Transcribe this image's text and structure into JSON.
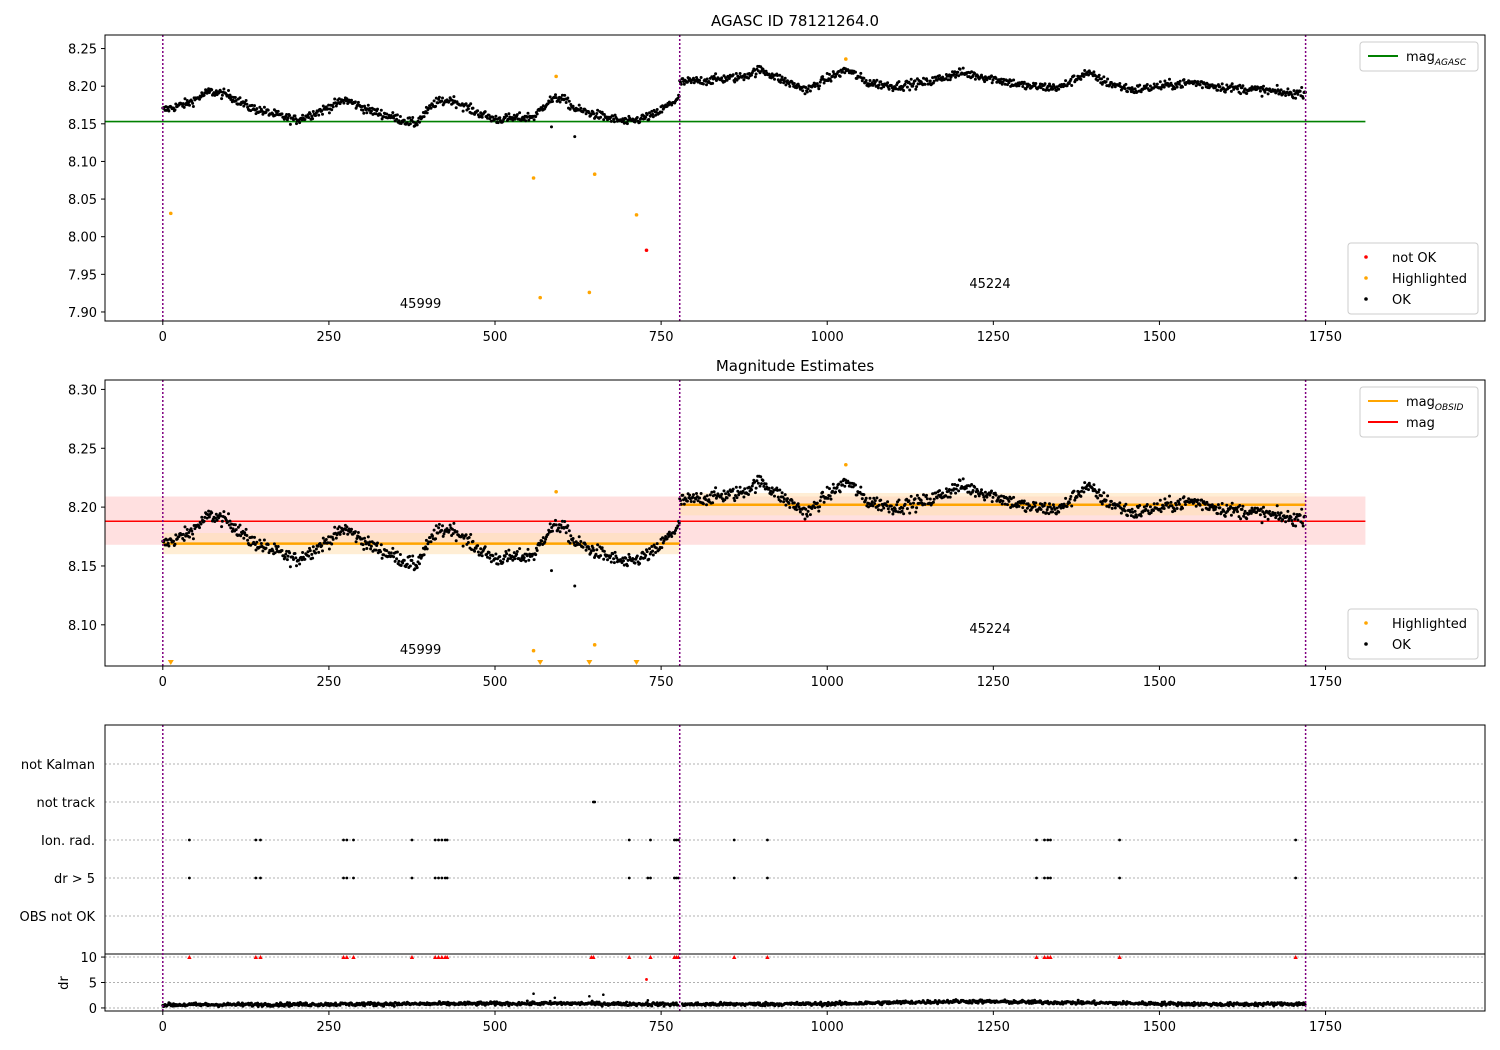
{
  "chart_data": [
    {
      "type": "scatter",
      "title": "AGASC ID 78121264.0",
      "xlim": [
        -87,
        1990
      ],
      "ylim": [
        7.888,
        8.268
      ],
      "xticks": [
        0,
        250,
        500,
        750,
        1000,
        1250,
        1500,
        1750
      ],
      "yticks": [
        7.9,
        7.95,
        8.0,
        8.05,
        8.1,
        8.15,
        8.2,
        8.25
      ],
      "ytick_labels": [
        "7.90",
        "7.95",
        "8.00",
        "8.05",
        "8.10",
        "8.15",
        "8.20",
        "8.25"
      ],
      "obs_boundaries": [
        0,
        778,
        1720
      ],
      "obs_labels": [
        {
          "text": "45999",
          "x": 388,
          "y": 7.905
        },
        {
          "text": "45224",
          "x": 1245,
          "y": 7.932
        }
      ],
      "lines": [
        {
          "label": "mag",
          "subscript": "AGASC",
          "y": 8.153,
          "x": [
            -87,
            1810
          ],
          "color": "#008000"
        }
      ],
      "scatter_series": [
        {
          "name": "not OK",
          "color": "#ff0000",
          "points": [
            [
              728,
              7.982
            ]
          ]
        },
        {
          "name": "Highlighted",
          "color": "#ffa500",
          "points": [
            [
              12,
              8.031
            ],
            [
              558,
              8.078
            ],
            [
              568,
              7.919
            ],
            [
              592,
              8.213
            ],
            [
              642,
              7.926
            ],
            [
              650,
              8.083
            ],
            [
              713,
              8.029
            ],
            [
              1028,
              8.236
            ]
          ]
        },
        {
          "name": "OK",
          "color": "#000000",
          "segments": [
            {
              "x0": 0,
              "x1": 778,
              "base": [
                [
                  0,
                  8.168
                ],
                [
                  40,
                  8.178
                ],
                [
                  70,
                  8.193
                ],
                [
                  100,
                  8.188
                ],
                [
                  130,
                  8.172
                ],
                [
                  170,
                  8.162
                ],
                [
                  200,
                  8.155
                ],
                [
                  240,
                  8.168
                ],
                [
                  275,
                  8.182
                ],
                [
                  310,
                  8.168
                ],
                [
                  350,
                  8.158
                ],
                [
                  380,
                  8.15
                ],
                [
                  410,
                  8.178
                ],
                [
                  435,
                  8.182
                ],
                [
                  470,
                  8.166
                ],
                [
                  500,
                  8.156
                ],
                [
                  540,
                  8.158
                ],
                [
                  560,
                  8.16
                ],
                [
                  580,
                  8.18
                ],
                [
                  600,
                  8.185
                ],
                [
                  620,
                  8.17
                ],
                [
                  640,
                  8.165
                ],
                [
                  670,
                  8.158
                ],
                [
                  700,
                  8.152
                ],
                [
                  740,
                  8.162
                ],
                [
                  778,
                  8.185
                ]
              ],
              "noise": 0.006
            },
            {
              "x0": 778,
              "x1": 1720,
              "base": [
                [
                  778,
                  8.205
                ],
                [
                  820,
                  8.208
                ],
                [
                  870,
                  8.212
                ],
                [
                  900,
                  8.222
                ],
                [
                  940,
                  8.205
                ],
                [
                  970,
                  8.195
                ],
                [
                  1000,
                  8.21
                ],
                [
                  1030,
                  8.222
                ],
                [
                  1060,
                  8.205
                ],
                [
                  1100,
                  8.2
                ],
                [
                  1150,
                  8.205
                ],
                [
                  1200,
                  8.218
                ],
                [
                  1250,
                  8.21
                ],
                [
                  1300,
                  8.2
                ],
                [
                  1350,
                  8.198
                ],
                [
                  1390,
                  8.218
                ],
                [
                  1420,
                  8.205
                ],
                [
                  1460,
                  8.195
                ],
                [
                  1500,
                  8.2
                ],
                [
                  1550,
                  8.205
                ],
                [
                  1600,
                  8.198
                ],
                [
                  1650,
                  8.195
                ],
                [
                  1700,
                  8.19
                ],
                [
                  1720,
                  8.192
                ]
              ],
              "noise": 0.006
            }
          ]
        }
      ],
      "extra_points": [
        [
          620,
          8.133
        ],
        [
          585,
          8.146
        ]
      ],
      "legends": [
        {
          "position": "upper right",
          "items": [
            {
              "label": "mag",
              "subscript": "AGASC",
              "kind": "line",
              "color": "#008000"
            }
          ]
        },
        {
          "position": "lower right",
          "items": [
            {
              "label": "not OK",
              "kind": "dot",
              "color": "#ff0000"
            },
            {
              "label": "Highlighted",
              "kind": "dot",
              "color": "#ffa500"
            },
            {
              "label": "OK",
              "kind": "dot",
              "color": "#000000"
            }
          ]
        }
      ]
    },
    {
      "type": "scatter",
      "title": "Magnitude Estimates",
      "xlim": [
        -87,
        1990
      ],
      "ylim": [
        8.065,
        8.308
      ],
      "xticks": [
        0,
        250,
        500,
        750,
        1000,
        1250,
        1500,
        1750
      ],
      "yticks": [
        8.1,
        8.15,
        8.2,
        8.25,
        8.3
      ],
      "ytick_labels": [
        "8.10",
        "8.15",
        "8.20",
        "8.25",
        "8.30"
      ],
      "obs_boundaries": [
        0,
        778,
        1720
      ],
      "obs_labels": [
        {
          "text": "45999",
          "x": 388,
          "y": 8.075
        },
        {
          "text": "45224",
          "x": 1245,
          "y": 8.093
        }
      ],
      "bands": [
        {
          "x": [
            -87,
            1810
          ],
          "y": [
            8.168,
            8.209
          ],
          "color": "#ffcccc",
          "opacity": 0.6
        },
        {
          "x": [
            0,
            778
          ],
          "y": [
            8.16,
            8.178
          ],
          "color": "#ffe0b3",
          "opacity": 0.55
        },
        {
          "x": [
            778,
            1720
          ],
          "y": [
            8.193,
            8.212
          ],
          "color": "#ffe0b3",
          "opacity": 0.55
        }
      ],
      "lines": [
        {
          "label": "mag",
          "y": 8.188,
          "x": [
            -87,
            1810
          ],
          "color": "#ff0000",
          "width": 1.5
        },
        {
          "label": "mag",
          "subscript": "OBSID",
          "y": 8.169,
          "x": [
            0,
            778
          ],
          "color": "#ffa500",
          "width": 2.5
        },
        {
          "label": "",
          "y": 8.202,
          "x": [
            778,
            1720
          ],
          "color": "#ffa500",
          "width": 2.5
        }
      ],
      "scatter_series": [
        {
          "name": "Highlighted",
          "color": "#ffa500",
          "points": [
            [
              558,
              8.078
            ],
            [
              592,
              8.213
            ],
            [
              650,
              8.083
            ],
            [
              1028,
              8.236
            ]
          ]
        },
        {
          "name": "OK",
          "color": "#000000",
          "segments": "same as panel 1"
        }
      ],
      "lower_limit_markers": {
        "color": "#ffa500",
        "x": [
          12,
          568,
          642,
          713
        ],
        "y": 8.068
      },
      "extra_points": [
        [
          620,
          8.133
        ],
        [
          585,
          8.146
        ]
      ],
      "legends": [
        {
          "position": "upper right",
          "items": [
            {
              "label": "mag",
              "subscript": "OBSID",
              "kind": "line",
              "color": "#ffa500"
            },
            {
              "label": "mag",
              "kind": "line",
              "color": "#ff0000"
            }
          ]
        },
        {
          "position": "lower right",
          "items": [
            {
              "label": "Highlighted",
              "kind": "dot",
              "color": "#ffa500"
            },
            {
              "label": "OK",
              "kind": "dot",
              "color": "#000000"
            }
          ]
        }
      ]
    },
    {
      "type": "scatter",
      "title": "",
      "xlim": [
        -87,
        1990
      ],
      "xticks": [
        0,
        250,
        500,
        750,
        1000,
        1250,
        1500,
        1750
      ],
      "obs_boundaries": [
        0,
        778,
        1720
      ],
      "flag_rows": [
        "not Kalman",
        "not track",
        "Ion. rad.",
        "dr > 5",
        "OBS not OK"
      ],
      "flag_points": {
        "not track": [
          648,
          650
        ],
        "Ion. rad.": [
          40,
          140,
          147,
          272,
          277,
          287,
          375,
          410,
          415,
          420,
          425,
          428,
          702,
          734,
          770,
          773,
          776,
          860,
          910,
          1315,
          1327,
          1332,
          1336,
          1440,
          1705
        ],
        "dr > 5": [
          40,
          140,
          147,
          272,
          277,
          287,
          375,
          410,
          415,
          420,
          425,
          428,
          702,
          730,
          734,
          770,
          773,
          776,
          860,
          910,
          1315,
          1327,
          1332,
          1336,
          1440,
          1705
        ]
      },
      "dr": {
        "ylabel": "dr",
        "ylim": [
          -0.6,
          10.6
        ],
        "yticks": [
          0,
          5,
          10
        ],
        "ytick_labels": [
          "0",
          "5",
          "10"
        ],
        "baseline": [
          [
            0,
            0.6
          ],
          [
            200,
            0.7
          ],
          [
            400,
            0.8
          ],
          [
            600,
            0.9
          ],
          [
            778,
            0.7
          ],
          [
            1000,
            0.8
          ],
          [
            1200,
            1.3
          ],
          [
            1400,
            1.0
          ],
          [
            1600,
            0.7
          ],
          [
            1720,
            0.8
          ]
        ],
        "noise": 0.35,
        "clipped_marker": {
          "color": "#ff0000",
          "y": 10,
          "x": [
            40,
            140,
            147,
            272,
            277,
            287,
            375,
            410,
            415,
            420,
            425,
            428,
            645,
            648,
            702,
            734,
            770,
            773,
            776,
            860,
            910,
            1315,
            1327,
            1332,
            1336,
            1440,
            1705
          ]
        },
        "red_points": [
          [
            728,
            5.6
          ]
        ],
        "spikes": [
          [
            558,
            2.8
          ],
          [
            590,
            2.0
          ],
          [
            642,
            2.3
          ],
          [
            663,
            2.6
          ],
          [
            730,
            1.5
          ]
        ]
      }
    }
  ]
}
